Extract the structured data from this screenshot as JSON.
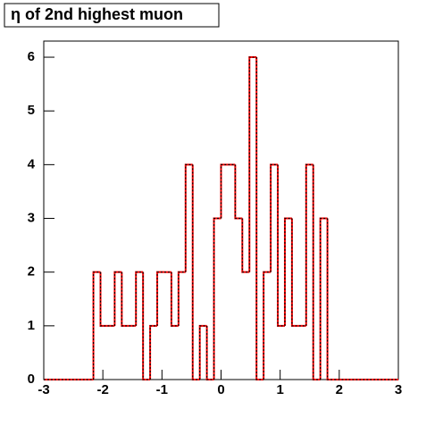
{
  "chart_data": {
    "type": "histogram",
    "title": "η of 2nd highest muon",
    "bins": [
      -3,
      -2.88,
      -2.76,
      -2.64,
      -2.52,
      -2.4,
      -2.28,
      -2.16,
      -2.04,
      -1.92,
      -1.8,
      -1.68,
      -1.56,
      -1.44,
      -1.32,
      -1.2,
      -1.08,
      -0.96,
      -0.84,
      -0.72,
      -0.6,
      -0.48,
      -0.36,
      -0.24,
      -0.12,
      0,
      0.12,
      0.24,
      0.36,
      0.48,
      0.6,
      0.72,
      0.84,
      0.96,
      1.08,
      1.2,
      1.32,
      1.44,
      1.56,
      1.68,
      1.8,
      1.92,
      2.04,
      2.16,
      2.28,
      2.4,
      2.52,
      2.64,
      2.76,
      2.88,
      3
    ],
    "values": [
      0,
      0,
      0,
      0,
      0,
      0,
      0,
      2,
      1,
      1,
      2,
      1,
      1,
      2,
      0,
      1,
      2,
      2,
      1,
      2,
      4,
      0,
      1,
      0,
      3,
      4,
      4,
      3,
      2,
      6,
      0,
      2,
      4,
      1,
      3,
      1,
      1,
      4,
      0,
      3,
      0,
      0,
      0,
      0,
      0,
      0,
      0,
      0,
      0,
      0
    ],
    "color": "#ff0000",
    "xlim": [
      -3,
      3
    ],
    "xticks": [
      -3,
      -2,
      -1,
      0,
      1,
      2,
      3
    ],
    "ylim": [
      0,
      6.3
    ],
    "yticks": [
      0,
      1,
      2,
      3,
      4,
      5,
      6
    ]
  }
}
